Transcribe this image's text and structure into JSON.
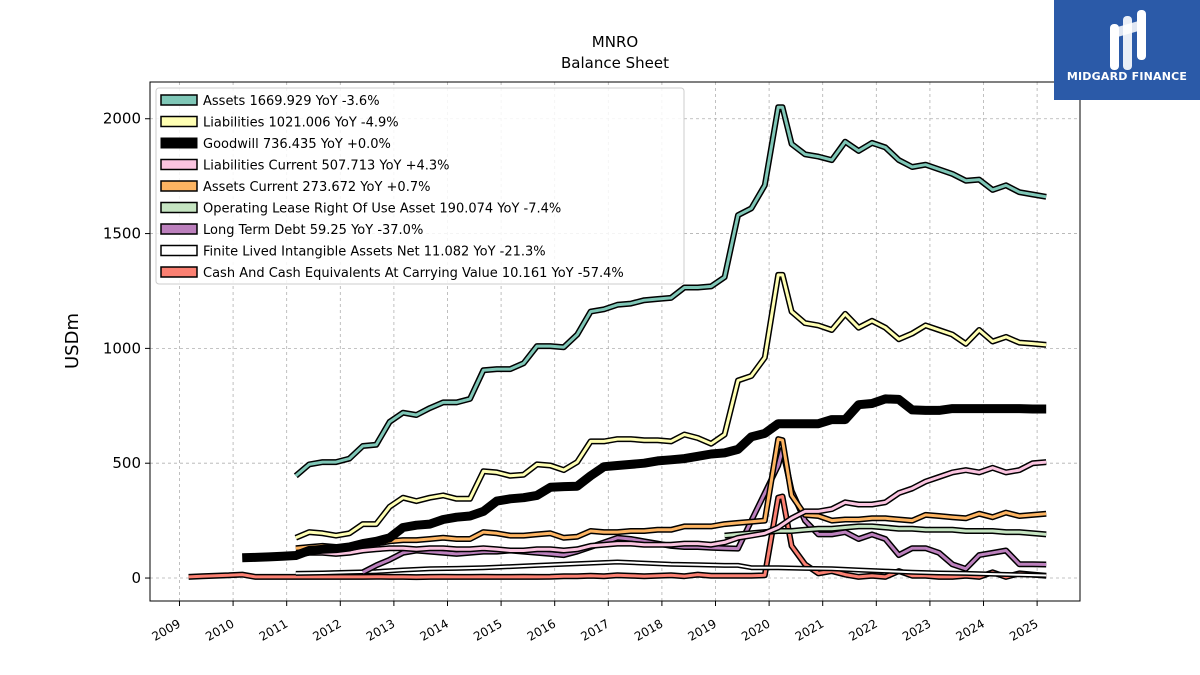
{
  "brand": {
    "name": "MIDGARD FINANCE"
  },
  "chart_data": {
    "type": "line",
    "title": "MNRO",
    "subtitle": "Balance  Sheet",
    "ylabel": "USDm",
    "xlabel": "",
    "xlim": [
      2008.45,
      2025.8
    ],
    "ylim": [
      -100,
      2160
    ],
    "x_ticks": [
      2009,
      2010,
      2011,
      2012,
      2013,
      2014,
      2015,
      2016,
      2017,
      2018,
      2019,
      2020,
      2021,
      2022,
      2023,
      2024,
      2025
    ],
    "y_ticks": [
      0,
      500,
      1000,
      1500,
      2000
    ],
    "grid": true,
    "legend_position": "top-left",
    "series": [
      {
        "name": "Assets",
        "legend": "Assets  1669.929 YoY -3.6%",
        "color": "#7fc7b7",
        "width": 3,
        "x": [
          2011.17,
          2011.42,
          2011.67,
          2011.92,
          2012.17,
          2012.42,
          2012.67,
          2012.92,
          2013.17,
          2013.42,
          2013.67,
          2013.92,
          2014.17,
          2014.42,
          2014.67,
          2014.92,
          2015.17,
          2015.42,
          2015.67,
          2015.92,
          2016.17,
          2016.42,
          2016.67,
          2016.92,
          2017.17,
          2017.42,
          2017.67,
          2017.92,
          2018.17,
          2018.42,
          2018.67,
          2018.92,
          2019.17,
          2019.42,
          2019.67,
          2019.92,
          2020.17,
          2020.25,
          2020.42,
          2020.67,
          2020.92,
          2021.17,
          2021.42,
          2021.67,
          2021.92,
          2022.17,
          2022.42,
          2022.67,
          2022.92,
          2023.17,
          2023.42,
          2023.67,
          2023.92,
          2024.17,
          2024.42,
          2024.67,
          2024.92,
          2025.17
        ],
        "y": [
          445,
          495,
          505,
          505,
          520,
          575,
          580,
          680,
          720,
          710,
          740,
          765,
          765,
          780,
          905,
          910,
          910,
          935,
          1010,
          1010,
          1005,
          1060,
          1160,
          1170,
          1190,
          1195,
          1210,
          1215,
          1220,
          1265,
          1265,
          1270,
          1310,
          1580,
          1610,
          1710,
          2050,
          2050,
          1890,
          1845,
          1835,
          1820,
          1900,
          1860,
          1895,
          1875,
          1820,
          1790,
          1800,
          1780,
          1760,
          1730,
          1735,
          1690,
          1710,
          1680,
          1670,
          1660
        ]
      },
      {
        "name": "Liabilities",
        "legend": "Liabilities  1021.006 YoY -4.9%",
        "color": "#ffffb3",
        "width": 3,
        "x": [
          2011.17,
          2011.42,
          2011.67,
          2011.92,
          2012.17,
          2012.42,
          2012.67,
          2012.92,
          2013.17,
          2013.42,
          2013.67,
          2013.92,
          2014.17,
          2014.42,
          2014.67,
          2014.92,
          2015.17,
          2015.42,
          2015.67,
          2015.92,
          2016.17,
          2016.42,
          2016.67,
          2016.92,
          2017.17,
          2017.42,
          2017.67,
          2017.92,
          2018.17,
          2018.42,
          2018.67,
          2018.92,
          2019.17,
          2019.42,
          2019.67,
          2019.92,
          2020.17,
          2020.25,
          2020.42,
          2020.67,
          2020.92,
          2021.17,
          2021.42,
          2021.67,
          2021.92,
          2022.17,
          2022.42,
          2022.67,
          2022.92,
          2023.17,
          2023.42,
          2023.67,
          2023.92,
          2024.17,
          2024.42,
          2024.67,
          2024.92,
          2025.17
        ],
        "y": [
          175,
          200,
          195,
          185,
          195,
          235,
          235,
          310,
          350,
          335,
          350,
          360,
          345,
          345,
          465,
          460,
          445,
          450,
          495,
          490,
          470,
          505,
          595,
          595,
          605,
          605,
          600,
          600,
          595,
          625,
          610,
          585,
          625,
          860,
          880,
          960,
          1320,
          1320,
          1160,
          1110,
          1100,
          1080,
          1150,
          1090,
          1120,
          1090,
          1040,
          1065,
          1100,
          1080,
          1060,
          1020,
          1080,
          1030,
          1050,
          1025,
          1021,
          1015
        ]
      },
      {
        "name": "Goodwill",
        "legend": "Goodwill  736.435 YoY +0.0%",
        "color": "#000000",
        "width": 6,
        "x": [
          2010.17,
          2010.42,
          2010.67,
          2010.92,
          2011.17,
          2011.42,
          2011.67,
          2011.92,
          2012.17,
          2012.42,
          2012.67,
          2012.92,
          2013.17,
          2013.42,
          2013.67,
          2013.92,
          2014.17,
          2014.42,
          2014.67,
          2014.92,
          2015.17,
          2015.42,
          2015.67,
          2015.92,
          2016.17,
          2016.42,
          2016.67,
          2016.92,
          2017.17,
          2017.42,
          2017.67,
          2017.92,
          2018.17,
          2018.42,
          2018.67,
          2018.92,
          2019.17,
          2019.42,
          2019.67,
          2019.92,
          2020.17,
          2020.42,
          2020.67,
          2020.92,
          2021.17,
          2021.42,
          2021.67,
          2021.92,
          2022.17,
          2022.42,
          2022.67,
          2022.92,
          2023.17,
          2023.42,
          2023.67,
          2023.92,
          2024.17,
          2024.42,
          2024.67,
          2024.92,
          2025.17
        ],
        "y": [
          88,
          90,
          92,
          95,
          98,
          120,
          125,
          128,
          135,
          150,
          160,
          175,
          220,
          230,
          235,
          255,
          265,
          270,
          290,
          335,
          345,
          350,
          360,
          395,
          398,
          400,
          445,
          485,
          490,
          495,
          500,
          510,
          515,
          520,
          530,
          540,
          545,
          560,
          615,
          630,
          672,
          672,
          672,
          672,
          690,
          690,
          755,
          760,
          780,
          778,
          732,
          730,
          730,
          738,
          738,
          738,
          738,
          738,
          738,
          736,
          736
        ]
      },
      {
        "name": "Liabilities Current",
        "legend": "Liabilities Current  507.713 YoY +4.3%",
        "color": "#fbc4e0",
        "width": 3,
        "x": [
          2011.17,
          2011.42,
          2011.67,
          2011.92,
          2012.17,
          2012.42,
          2012.67,
          2012.92,
          2013.17,
          2013.42,
          2013.67,
          2013.92,
          2014.17,
          2014.42,
          2014.67,
          2014.92,
          2015.17,
          2015.42,
          2015.67,
          2015.92,
          2016.17,
          2016.42,
          2016.67,
          2016.92,
          2017.17,
          2017.42,
          2017.67,
          2017.92,
          2018.17,
          2018.42,
          2018.67,
          2018.92,
          2019.17,
          2019.42,
          2019.67,
          2019.92,
          2020.17,
          2020.42,
          2020.67,
          2020.92,
          2021.17,
          2021.42,
          2021.67,
          2021.92,
          2022.17,
          2022.42,
          2022.67,
          2022.92,
          2023.17,
          2023.42,
          2023.67,
          2023.92,
          2024.17,
          2024.42,
          2024.67,
          2024.92,
          2025.17
        ],
        "y": [
          100,
          110,
          110,
          105,
          110,
          120,
          125,
          130,
          130,
          125,
          130,
          130,
          125,
          125,
          130,
          125,
          120,
          120,
          125,
          125,
          120,
          125,
          140,
          145,
          150,
          150,
          145,
          145,
          145,
          150,
          150,
          145,
          155,
          175,
          185,
          195,
          220,
          260,
          290,
          290,
          300,
          330,
          320,
          320,
          330,
          370,
          390,
          420,
          440,
          460,
          470,
          460,
          480,
          460,
          470,
          500,
          505
        ]
      },
      {
        "name": "Assets Current",
        "legend": "Assets Current  273.672 YoY +0.7%",
        "color": "#fdb462",
        "width": 3,
        "x": [
          2011.17,
          2011.42,
          2011.67,
          2011.92,
          2012.17,
          2012.42,
          2012.67,
          2012.92,
          2013.17,
          2013.42,
          2013.67,
          2013.92,
          2014.17,
          2014.42,
          2014.67,
          2014.92,
          2015.17,
          2015.42,
          2015.67,
          2015.92,
          2016.17,
          2016.42,
          2016.67,
          2016.92,
          2017.17,
          2017.42,
          2017.67,
          2017.92,
          2018.17,
          2018.42,
          2018.67,
          2018.92,
          2019.17,
          2019.42,
          2019.67,
          2019.92,
          2020.17,
          2020.25,
          2020.42,
          2020.67,
          2020.92,
          2021.17,
          2021.42,
          2021.67,
          2021.92,
          2022.17,
          2022.42,
          2022.67,
          2022.92,
          2023.17,
          2023.42,
          2023.67,
          2023.92,
          2024.17,
          2024.42,
          2024.67,
          2024.92,
          2025.17
        ],
        "y": [
          130,
          135,
          140,
          135,
          135,
          145,
          150,
          160,
          165,
          165,
          170,
          175,
          170,
          170,
          200,
          195,
          185,
          185,
          190,
          195,
          175,
          180,
          205,
          200,
          200,
          205,
          205,
          210,
          210,
          225,
          225,
          225,
          235,
          240,
          245,
          250,
          605,
          600,
          360,
          275,
          270,
          250,
          255,
          255,
          260,
          260,
          255,
          250,
          275,
          270,
          265,
          260,
          280,
          265,
          285,
          270,
          275,
          280
        ]
      },
      {
        "name": "Operating Lease Right Of Use Asset",
        "legend": "Operating Lease Right Of Use Asset  190.074 YoY -7.4%",
        "color": "#c6e5c2",
        "width": 3,
        "x": [
          2019.17,
          2019.42,
          2019.67,
          2019.92,
          2020.17,
          2020.42,
          2020.67,
          2020.92,
          2021.17,
          2021.42,
          2021.67,
          2021.92,
          2022.17,
          2022.42,
          2022.67,
          2022.92,
          2023.17,
          2023.42,
          2023.67,
          2023.92,
          2024.17,
          2024.42,
          2024.67,
          2024.92,
          2025.17
        ],
        "y": [
          185,
          190,
          195,
          200,
          205,
          205,
          210,
          215,
          215,
          220,
          225,
          225,
          220,
          215,
          215,
          210,
          210,
          210,
          205,
          205,
          205,
          200,
          200,
          195,
          190
        ]
      },
      {
        "name": "Long Term Debt",
        "legend": "Long Term Debt  59.25 YoY -37.0%",
        "color": "#bc80bd",
        "width": 3,
        "x": [
          2012.42,
          2012.67,
          2012.92,
          2013.17,
          2013.42,
          2013.67,
          2013.92,
          2014.17,
          2014.42,
          2014.67,
          2014.92,
          2015.17,
          2015.42,
          2015.67,
          2015.92,
          2016.17,
          2016.42,
          2016.67,
          2016.92,
          2017.17,
          2017.42,
          2017.67,
          2017.92,
          2018.17,
          2018.42,
          2018.67,
          2018.92,
          2019.17,
          2019.42,
          2019.67,
          2019.92,
          2020.17,
          2020.25,
          2020.42,
          2020.67,
          2020.92,
          2021.17,
          2021.42,
          2021.67,
          2021.92,
          2022.17,
          2022.42,
          2022.67,
          2022.92,
          2023.17,
          2023.42,
          2023.67,
          2023.92,
          2024.17,
          2024.42,
          2024.67,
          2024.92,
          2025.17
        ],
        "y": [
          25,
          55,
          80,
          110,
          120,
          115,
          110,
          105,
          110,
          115,
          115,
          120,
          115,
          110,
          105,
          100,
          115,
          135,
          155,
          175,
          170,
          160,
          150,
          140,
          135,
          135,
          132,
          130,
          128,
          250,
          370,
          490,
          560,
          380,
          250,
          190,
          190,
          200,
          170,
          190,
          170,
          100,
          130,
          130,
          110,
          60,
          40,
          100,
          110,
          120,
          60,
          60,
          59
        ]
      },
      {
        "name": "Finite Lived Intangible Assets Net",
        "legend": "Finite Lived Intangible Assets Net  11.082 YoY -21.3%",
        "color": "#ffffff",
        "width": 2,
        "x": [
          2011.17,
          2011.67,
          2012.17,
          2012.67,
          2013.17,
          2013.67,
          2014.17,
          2014.67,
          2015.17,
          2015.67,
          2016.17,
          2016.67,
          2017.17,
          2017.67,
          2018.17,
          2018.67,
          2019.17,
          2019.42,
          2019.67,
          2019.92,
          2020.17,
          2020.67,
          2021.17,
          2021.67,
          2022.17,
          2022.67,
          2023.17,
          2023.67,
          2024.17,
          2024.67,
          2025.17
        ],
        "y": [
          20,
          22,
          25,
          28,
          35,
          40,
          42,
          45,
          50,
          55,
          60,
          65,
          70,
          65,
          60,
          58,
          55,
          55,
          45,
          45,
          45,
          42,
          40,
          35,
          30,
          25,
          22,
          20,
          17,
          14,
          11
        ]
      },
      {
        "name": "Cash And Cash Equivalents At Carrying Value",
        "legend": "Cash And Cash Equivalents At Carrying Value  10.161 YoY -57.4%",
        "color": "#fb8072",
        "width": 3,
        "x": [
          2009.17,
          2009.42,
          2009.67,
          2009.92,
          2010.17,
          2010.42,
          2010.67,
          2010.92,
          2011.17,
          2011.42,
          2011.67,
          2011.92,
          2012.17,
          2012.42,
          2012.67,
          2012.92,
          2013.17,
          2013.42,
          2013.67,
          2013.92,
          2014.17,
          2014.42,
          2014.67,
          2014.92,
          2015.17,
          2015.42,
          2015.67,
          2015.92,
          2016.17,
          2016.42,
          2016.67,
          2016.92,
          2017.17,
          2017.42,
          2017.67,
          2017.92,
          2018.17,
          2018.42,
          2018.67,
          2018.92,
          2019.17,
          2019.42,
          2019.67,
          2019.92,
          2020.17,
          2020.25,
          2020.42,
          2020.67,
          2020.92,
          2021.17,
          2021.42,
          2021.67,
          2021.92,
          2022.17,
          2022.42,
          2022.67,
          2022.92,
          2023.17,
          2023.42,
          2023.67,
          2023.92,
          2024.17,
          2024.42,
          2024.67,
          2024.92,
          2025.17
        ],
        "y": [
          5,
          8,
          10,
          12,
          15,
          5,
          5,
          5,
          5,
          6,
          5,
          5,
          5,
          5,
          6,
          5,
          5,
          4,
          5,
          6,
          5,
          5,
          6,
          5,
          5,
          6,
          5,
          6,
          8,
          8,
          10,
          8,
          12,
          10,
          8,
          10,
          12,
          8,
          15,
          10,
          10,
          10,
          10,
          12,
          350,
          355,
          140,
          60,
          20,
          30,
          15,
          5,
          10,
          5,
          30,
          10,
          10,
          5,
          5,
          10,
          5,
          25,
          5,
          20,
          15,
          10
        ]
      }
    ]
  }
}
